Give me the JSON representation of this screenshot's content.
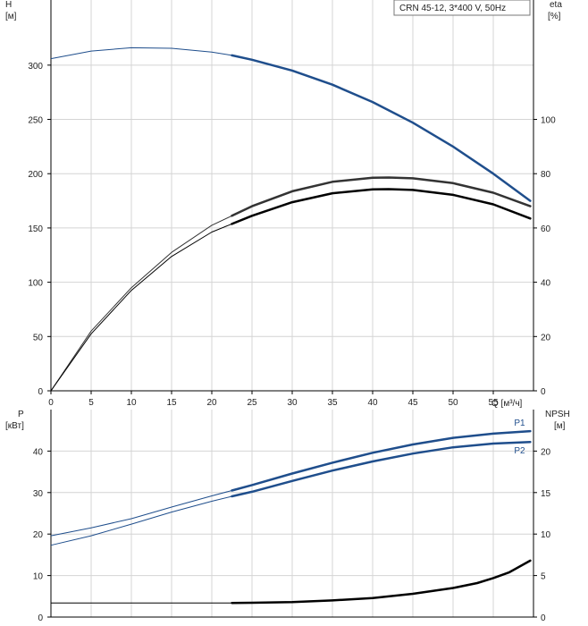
{
  "chart_data": [
    {
      "type": "line",
      "title": "CRN 45-12, 3*400 V, 50Hz",
      "xlabel": "Q [м³/ч]",
      "xlim": [
        0,
        60
      ],
      "x_ticks": [
        0,
        5,
        10,
        15,
        20,
        25,
        30,
        35,
        40,
        45,
        50,
        55
      ],
      "left_axis": {
        "label_line1": "H",
        "label_line2": "[м]",
        "ylim": [
          0,
          360
        ],
        "ticks": [
          0,
          50,
          100,
          150,
          200,
          250,
          300
        ]
      },
      "right_axis": {
        "label_line1": "eta",
        "label_line2": "[%]",
        "ylim": [
          0,
          144
        ],
        "ticks": [
          0,
          20,
          40,
          60,
          80,
          100
        ]
      },
      "grid": true,
      "series": [
        {
          "axis": "left",
          "color": "#1f4e8c",
          "thin_until": 22.5,
          "x": [
            0,
            5,
            10,
            15,
            20,
            22.5,
            25,
            30,
            35,
            40,
            45,
            50,
            55,
            59.6
          ],
          "y": [
            306,
            313,
            316,
            315.5,
            312,
            309,
            305,
            295,
            282,
            266,
            247,
            225,
            200,
            175
          ]
        },
        {
          "axis": "right",
          "color": "#333333",
          "thin_until": 22.5,
          "x": [
            0,
            5,
            10,
            15,
            20,
            22.5,
            25,
            30,
            35,
            40,
            42,
            45,
            50,
            55,
            59.6
          ],
          "y": [
            0,
            22,
            38,
            51,
            61,
            64.5,
            68,
            73.5,
            77,
            78.5,
            78.6,
            78.3,
            76.5,
            73,
            68
          ]
        },
        {
          "axis": "right",
          "color": "#000000",
          "thin_until": 22.5,
          "x": [
            0,
            5,
            10,
            15,
            20,
            22.5,
            25,
            30,
            35,
            40,
            42,
            45,
            50,
            55,
            59.6
          ],
          "y": [
            0,
            21,
            37,
            49.5,
            58.5,
            61.5,
            64.5,
            69.5,
            72.8,
            74.2,
            74.3,
            74,
            72.2,
            68.7,
            63.5
          ]
        }
      ]
    },
    {
      "type": "line",
      "xlim": [
        0,
        60
      ],
      "left_axis": {
        "label_line1": "P",
        "label_line2": "[кВт]",
        "ylim": [
          0,
          50
        ],
        "ticks": [
          0,
          10,
          20,
          30,
          40
        ]
      },
      "right_axis": {
        "label_line1": "NPSH",
        "label_line2": "[м]",
        "ylim": [
          0,
          25
        ],
        "ticks": [
          0,
          5,
          10,
          15,
          20
        ]
      },
      "grid": true,
      "series": [
        {
          "name": "P1",
          "axis": "left",
          "color": "#1f4e8c",
          "thin_until": 22.5,
          "x": [
            0,
            5,
            10,
            15,
            20,
            22.5,
            25,
            30,
            35,
            40,
            45,
            50,
            55,
            59.6
          ],
          "y": [
            19.6,
            21.5,
            23.7,
            26.5,
            29.2,
            30.5,
            31.8,
            34.6,
            37.2,
            39.6,
            41.6,
            43.2,
            44.2,
            44.8
          ]
        },
        {
          "name": "P2",
          "axis": "left",
          "color": "#1f4e8c",
          "thin_until": 22.5,
          "x": [
            0,
            5,
            10,
            15,
            20,
            22.5,
            25,
            30,
            35,
            40,
            45,
            50,
            55,
            59.6
          ],
          "y": [
            17.3,
            19.6,
            22.4,
            25.3,
            27.9,
            29.1,
            30.2,
            32.8,
            35.3,
            37.5,
            39.4,
            40.9,
            41.8,
            42.2
          ]
        },
        {
          "axis": "right",
          "color": "#000000",
          "thin_until": 22.5,
          "x": [
            0,
            5,
            10,
            15,
            20,
            22.5,
            25,
            30,
            35,
            40,
            45,
            50,
            53,
            55,
            57,
            59.6
          ],
          "y": [
            1.7,
            1.7,
            1.7,
            1.7,
            1.7,
            1.7,
            1.72,
            1.8,
            2,
            2.3,
            2.8,
            3.5,
            4.1,
            4.7,
            5.4,
            6.8
          ]
        }
      ]
    }
  ]
}
